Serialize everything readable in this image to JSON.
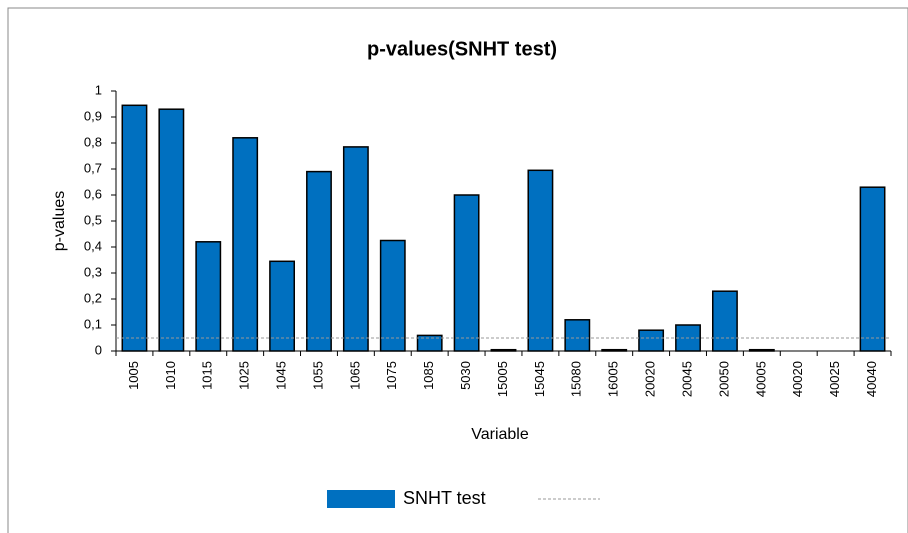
{
  "chart_data": {
    "type": "bar",
    "title": "p-values(SNHT test)",
    "x_label": "Variable",
    "y_label": "p-values",
    "categories": [
      "1005",
      "1010",
      "1015",
      "1025",
      "1045",
      "1055",
      "1065",
      "1075",
      "1085",
      "5030",
      "15005",
      "15045",
      "15080",
      "16005",
      "20020",
      "20045",
      "20050",
      "40005",
      "40020",
      "40025",
      "40040"
    ],
    "series": [
      {
        "name": "SNHT test",
        "color": "#0070c0",
        "values": [
          0.945,
          0.93,
          0.42,
          0.82,
          0.345,
          0.69,
          0.785,
          0.425,
          0.06,
          0.6,
          0.005,
          0.695,
          0.12,
          0.005,
          0.08,
          0.1,
          0.23,
          0.005,
          0,
          0,
          0.63
        ]
      }
    ],
    "threshold": {
      "value": 0.05,
      "color": "#999999",
      "dashed": true
    },
    "ylim": [
      0,
      1
    ],
    "yticks": [
      0,
      {
        "value": 0.1,
        "label": "0,1"
      },
      {
        "value": 0.2,
        "label": "0,2"
      },
      {
        "value": 0.3,
        "label": "0,3"
      },
      {
        "value": 0.4,
        "label": "0,4"
      },
      {
        "value": 0.5,
        "label": "0,5"
      },
      {
        "value": 0.6,
        "label": "0,6"
      },
      {
        "value": 0.7,
        "label": "0,7"
      },
      {
        "value": 0.8,
        "label": "0,8"
      },
      {
        "value": 0.9,
        "label": "0,9"
      },
      1
    ],
    "grid": false,
    "legend": "bottom"
  }
}
